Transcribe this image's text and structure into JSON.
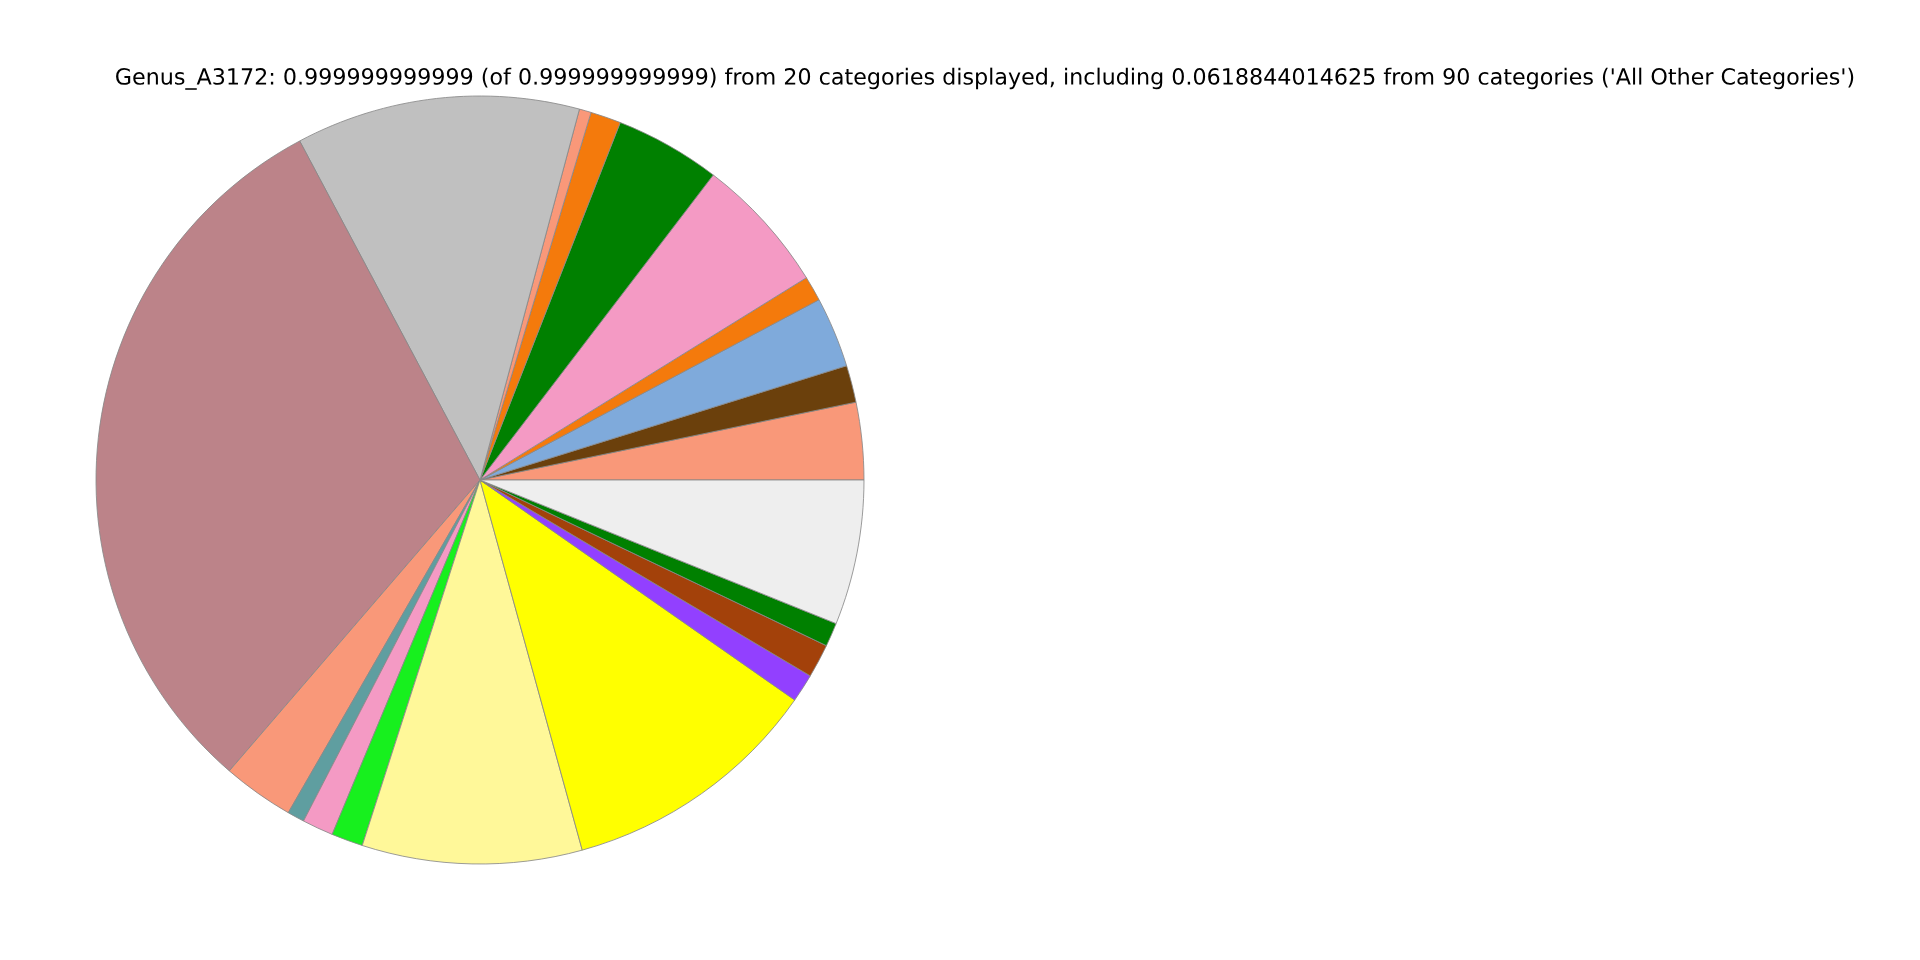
{
  "chart_data": {
    "type": "pie",
    "title": "Genus_A3172: 0.999999999999 (of 0.999999999999) from 20 categories displayed, including 0.0618844014625 from 90 categories ('All Other Categories')",
    "categories": [
      null,
      null,
      null,
      null,
      null,
      null,
      null,
      null,
      null,
      null,
      null,
      null,
      null,
      null,
      null,
      null,
      null,
      null,
      null,
      null
    ],
    "values": [
      3.25,
      1.56,
      2.97,
      1.05,
      5.78,
      4.44,
      1.28,
      0.5,
      11.95,
      30.9,
      3.0,
      0.72,
      1.31,
      1.33,
      9.25,
      11.0,
      1.19,
      1.42,
      1.0,
      6.1
    ],
    "colors": [
      "#f99879",
      "#6b400c",
      "#7faadb",
      "#f47a0c",
      "#f49ac4",
      "#008000",
      "#f47a0c",
      "#f99879",
      "#c0c0c0",
      "#bc8389",
      "#f99879",
      "#5f9ea0",
      "#f49ac4",
      "#17f01e",
      "#fff899",
      "#ffff00",
      "#9240ff",
      "#a3410a",
      "#008000",
      "#eeeeee"
    ],
    "legend": false
  }
}
